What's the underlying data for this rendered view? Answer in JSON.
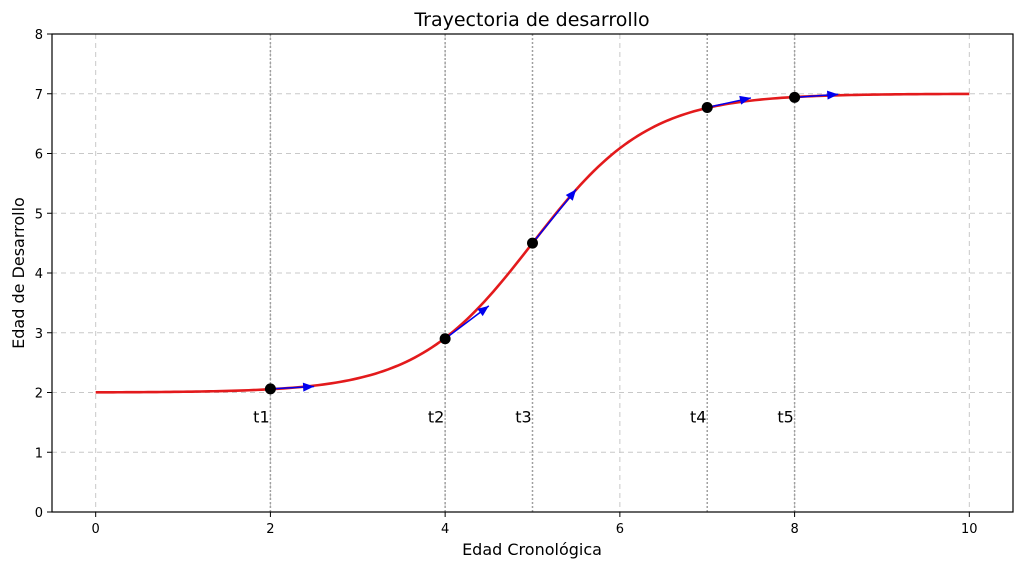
{
  "chart_data": {
    "type": "line",
    "title": "Trayectoria de desarrollo",
    "xlabel": "Edad Cronológica",
    "ylabel": "Edad de Desarrollo",
    "xlim": [
      -0.5,
      10.5
    ],
    "ylim": [
      0,
      8
    ],
    "xticks": [
      0,
      2,
      4,
      6,
      8,
      10
    ],
    "yticks": [
      0,
      1,
      2,
      3,
      4,
      5,
      6,
      7,
      8
    ],
    "grid": true,
    "colors": {
      "curve": "#e31a1c",
      "points": "#000000",
      "arrows": "#0000ee",
      "grid": "#c8c8c8",
      "markers": "#a0a0a0"
    },
    "series": [
      {
        "curve": "logistic",
        "x": [
          0,
          1,
          2,
          3,
          3.5,
          4,
          4.5,
          5,
          5.5,
          6,
          6.5,
          7,
          8,
          9,
          10
        ],
        "y": [
          2.0,
          2.01,
          2.06,
          2.33,
          2.58,
          2.9,
          3.46,
          4.5,
          5.36,
          6.07,
          6.5,
          6.77,
          6.94,
          6.99,
          7.0
        ]
      }
    ],
    "points": [
      {
        "label": "t1",
        "x": 2,
        "y": 2.06
      },
      {
        "label": "t2",
        "x": 4,
        "y": 2.9
      },
      {
        "label": "t3",
        "x": 5,
        "y": 4.5
      },
      {
        "label": "t4",
        "x": 7,
        "y": 6.77
      },
      {
        "label": "t5",
        "x": 8,
        "y": 6.94
      }
    ],
    "arrows": [
      {
        "x": 2,
        "y": 2.06,
        "dx": 0.5,
        "dy": 0.04
      },
      {
        "x": 4,
        "y": 2.9,
        "dx": 0.5,
        "dy": 0.55
      },
      {
        "x": 5,
        "y": 4.5,
        "dx": 0.5,
        "dy": 0.9
      },
      {
        "x": 7,
        "y": 6.77,
        "dx": 0.5,
        "dy": 0.16
      },
      {
        "x": 8,
        "y": 6.94,
        "dx": 0.5,
        "dy": 0.05
      }
    ],
    "label_y": 1.6
  }
}
